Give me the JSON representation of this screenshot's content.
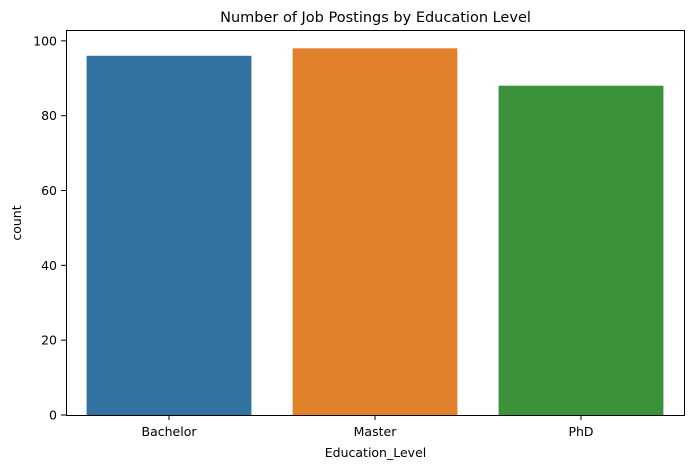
{
  "chart_data": {
    "type": "bar",
    "title": "Number of Job Postings by Education Level",
    "xlabel": "Education_Level",
    "ylabel": "count",
    "categories": [
      "Bachelor",
      "Master",
      "PhD"
    ],
    "values": [
      96,
      98,
      88
    ],
    "colors": [
      "#3274a1",
      "#e1812c",
      "#3a923a"
    ],
    "ylim": [
      0,
      102.9
    ],
    "yticks": [
      0,
      20,
      40,
      60,
      80,
      100
    ],
    "grid": false,
    "legend": "none"
  }
}
